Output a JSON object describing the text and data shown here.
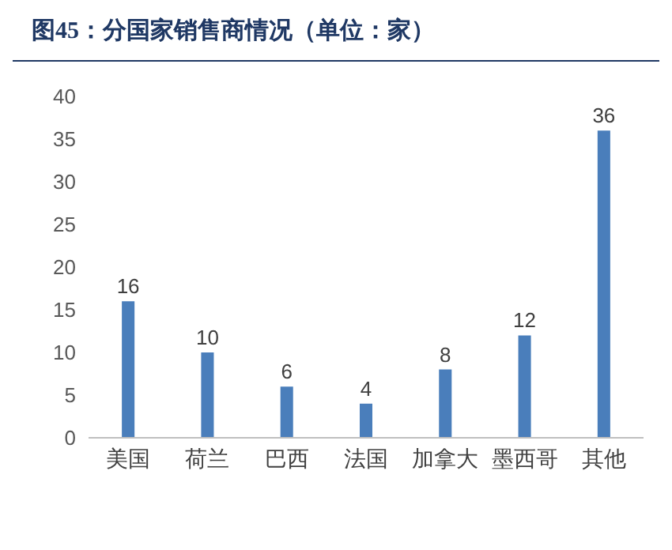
{
  "chart_data": {
    "type": "bar",
    "title": "图45：分国家销售商情况（单位：家）",
    "categories": [
      "美国",
      "荷兰",
      "巴西",
      "法国",
      "加拿大",
      "墨西哥",
      "其他"
    ],
    "values": [
      16,
      10,
      6,
      4,
      8,
      12,
      36
    ],
    "color": "#4a7ebb",
    "ylim": [
      0,
      40
    ],
    "yticks": [
      0,
      5,
      10,
      15,
      20,
      25,
      30,
      35,
      40
    ],
    "grid": false,
    "data_labels": true
  }
}
